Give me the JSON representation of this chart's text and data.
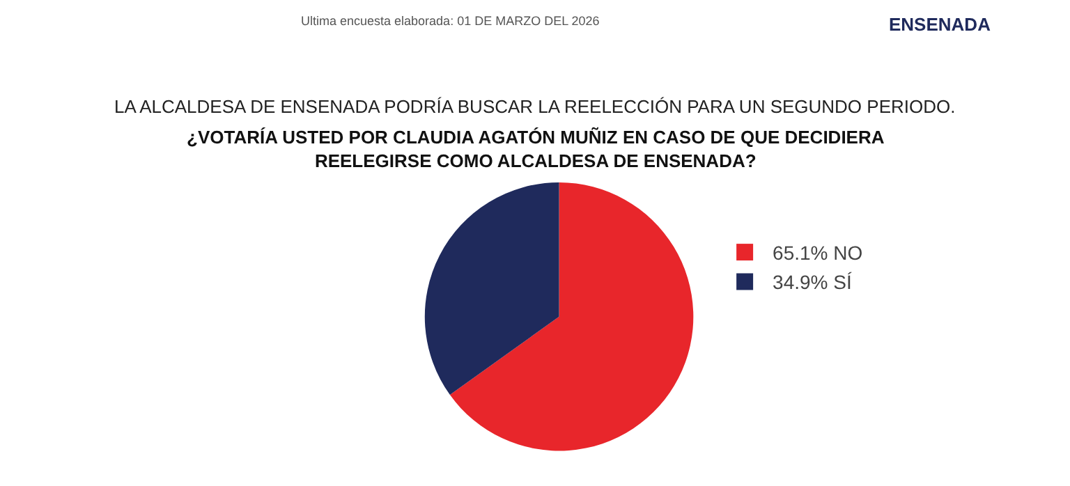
{
  "chart_data": {
    "type": "pie",
    "title": "LA ALCALDESA DE ENSENADA PODRÍA BUSCAR LA REELECCIÓN PARA UN SEGUNDO PERIODO.",
    "subtitle": "¿VOTARÍA USTED POR CLAUDIA AGATÓN MUÑIZ EN CASO DE QUE DECIDIERA REELEGIRSE COMO ALCALDESA DE ENSENADA?",
    "annotations": [
      "Ultima encuesta elaborada: 01 DE MARZO DEL 2026",
      "ENSENADA"
    ],
    "categories": [
      "65.1% NO",
      "34.9% SÍ"
    ],
    "values": [
      65.1,
      34.9
    ],
    "colors": [
      "#e8262b",
      "#1f2a5c"
    ],
    "legend": "right"
  }
}
